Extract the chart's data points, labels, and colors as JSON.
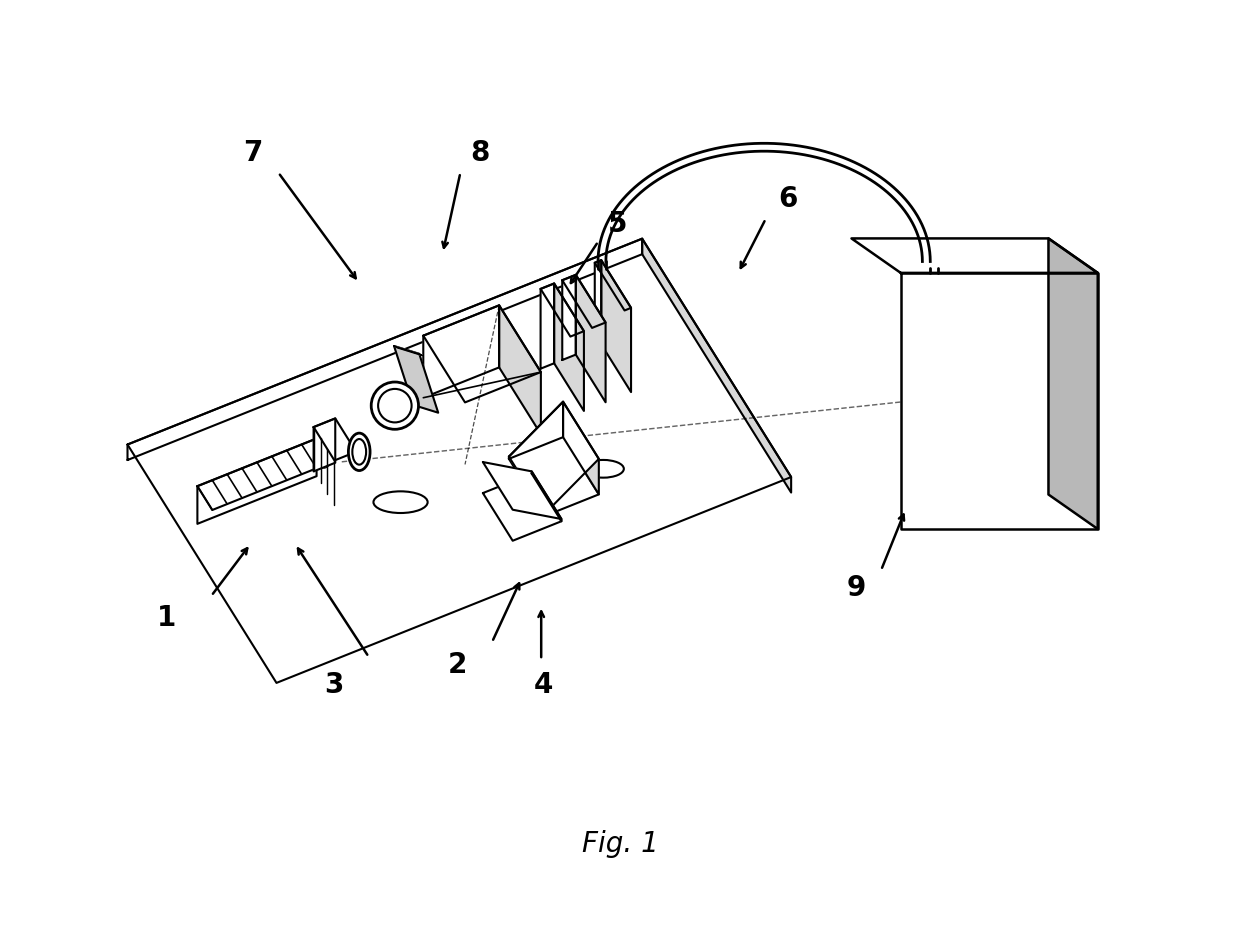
{
  "title": "Fig. 1",
  "bg_color": "#ffffff",
  "line_color": "#000000",
  "gray_light": "#d8d8d8",
  "gray_side": "#b8b8b8"
}
